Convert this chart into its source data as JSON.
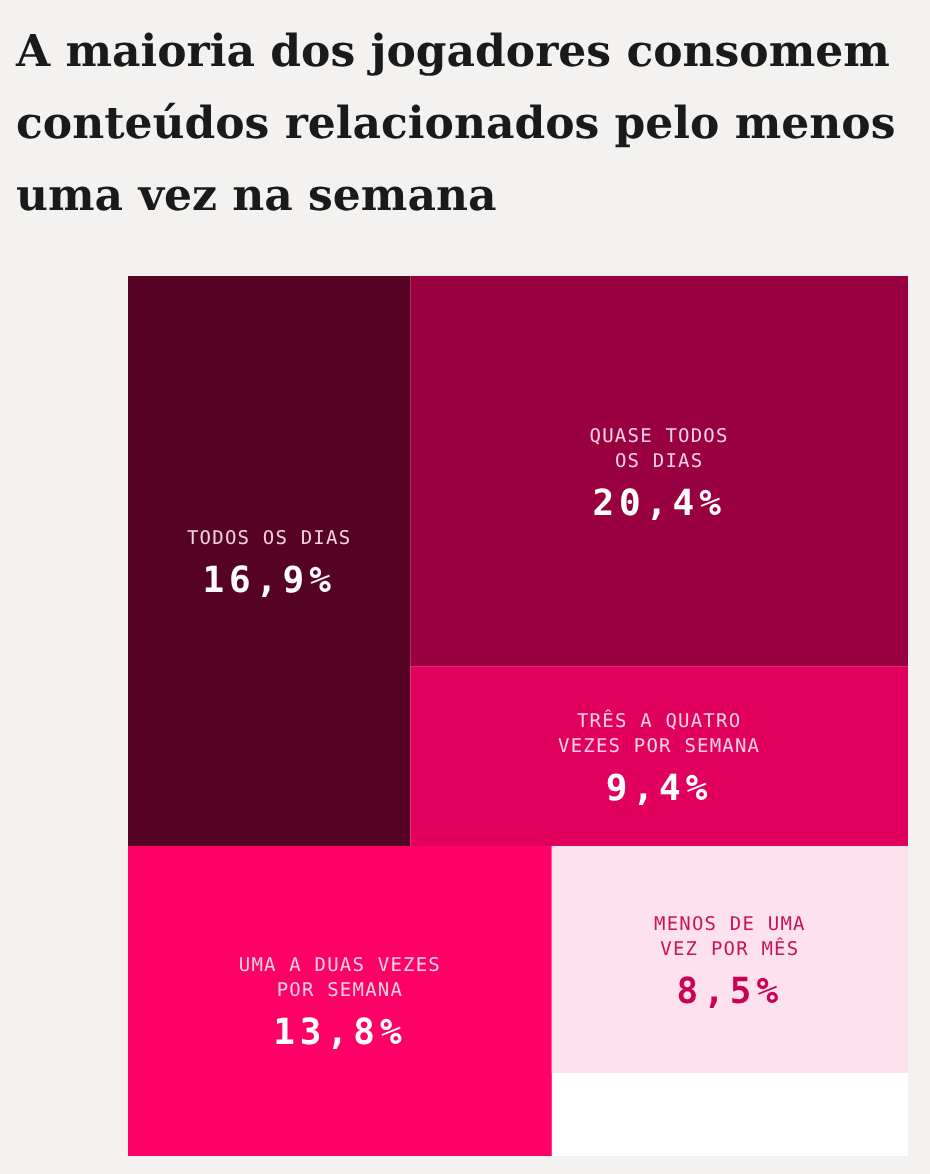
{
  "chart_data": {
    "type": "other",
    "title": "A maioria dos jogadores consomem conteúdos relacionados pelo menos uma vez na semana",
    "categories": [
      "TODOS OS DIAS",
      "QUASE TODOS\nOS DIAS",
      "TRÊS A QUATRO\nVEZES POR SEMANA",
      "UMA A DUAS VEZES\nPOR SEMANA",
      "MENOS DE UMA\nVEZ POR MÊS"
    ],
    "values": [
      16.9,
      20.4,
      9.4,
      13.8,
      8.5
    ],
    "value_labels": [
      "16,9%",
      "20,4%",
      "9,4%",
      "13,8%",
      "8,5%"
    ],
    "colors": [
      "#560224",
      "#99003f",
      "#e2005e",
      "#ff0066",
      "#fde2ee"
    ]
  }
}
